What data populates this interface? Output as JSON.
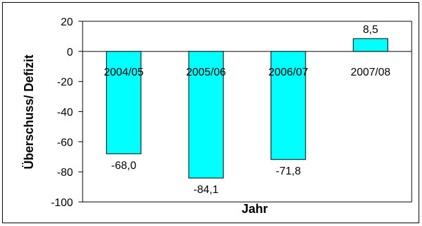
{
  "chart_data": {
    "type": "bar",
    "title": "",
    "xlabel": "Jahr",
    "ylabel": "Überschuss/ Defizit",
    "categories": [
      "2004/05",
      "2005/06",
      "2006/07",
      "2007/08"
    ],
    "values": [
      -68.0,
      -84.1,
      -71.8,
      8.5
    ],
    "data_labels": [
      "-68,0",
      "-84,1",
      "-71,8",
      "8,5"
    ],
    "ylim": [
      -100,
      20
    ],
    "yticks": [
      20,
      0,
      -20,
      -40,
      -60,
      -80,
      -100
    ],
    "ytick_labels": [
      "20",
      "0",
      "-20",
      "-40",
      "-60",
      "-80",
      "-100"
    ],
    "grid": false,
    "legend": "none",
    "bar_color": "#00ffff",
    "bar_edge_color": "#000000"
  }
}
